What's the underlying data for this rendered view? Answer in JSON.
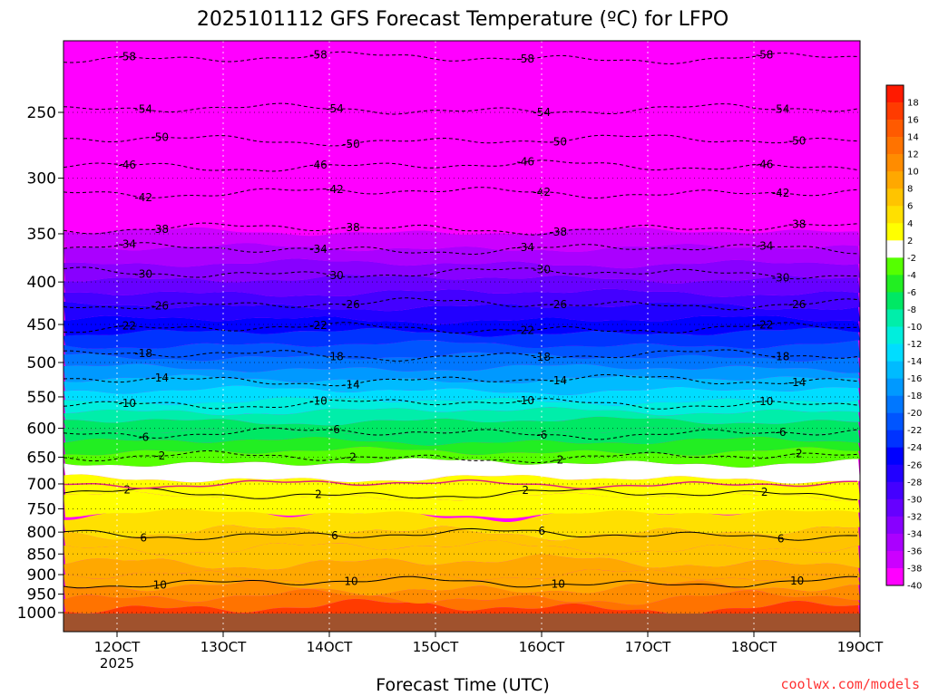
{
  "chart_data": {
    "type": "heatmap",
    "title": "2025101112 GFS Forecast Temperature (ºC) for LFPO",
    "xlabel": "Forecast Time (UTC)",
    "ylabel": "",
    "credit": "coolwx.com/models",
    "x_ticks": [
      {
        "label": "12OCT",
        "sub": "2025"
      },
      {
        "label": "13OCT",
        "sub": ""
      },
      {
        "label": "14OCT",
        "sub": ""
      },
      {
        "label": "15OCT",
        "sub": ""
      },
      {
        "label": "16OCT",
        "sub": ""
      },
      {
        "label": "17OCT",
        "sub": ""
      },
      {
        "label": "18OCT",
        "sub": ""
      },
      {
        "label": "19OCT",
        "sub": ""
      }
    ],
    "y_ticks": [
      250,
      300,
      350,
      400,
      450,
      500,
      550,
      600,
      650,
      700,
      750,
      800,
      850,
      900,
      950,
      1000
    ],
    "y_scale": "log-pressure",
    "ylim_hPa": [
      1030,
      200
    ],
    "grid": true,
    "colorbar": [
      {
        "label": "18",
        "color": "#ff1a00"
      },
      {
        "label": "16",
        "color": "#ff3b00"
      },
      {
        "label": "14",
        "color": "#ff5a00"
      },
      {
        "label": "12",
        "color": "#ff7300"
      },
      {
        "label": "10",
        "color": "#ff8c00"
      },
      {
        "label": "8",
        "color": "#ffa800"
      },
      {
        "label": "6",
        "color": "#ffc400"
      },
      {
        "label": "4",
        "color": "#ffe000"
      },
      {
        "label": "2",
        "color": "#ffff00"
      },
      {
        "label": "-2",
        "color": "#ffffff"
      },
      {
        "label": "-4",
        "color": "#55ff00"
      },
      {
        "label": "-6",
        "color": "#22ee22"
      },
      {
        "label": "-8",
        "color": "#00e864"
      },
      {
        "label": "-10",
        "color": "#00eeaa"
      },
      {
        "label": "-12",
        "color": "#00eedd"
      },
      {
        "label": "-14",
        "color": "#00ddff"
      },
      {
        "label": "-16",
        "color": "#00bbff"
      },
      {
        "label": "-18",
        "color": "#0099ff"
      },
      {
        "label": "-20",
        "color": "#0077ff"
      },
      {
        "label": "-22",
        "color": "#0055ff"
      },
      {
        "label": "-24",
        "color": "#0033ff"
      },
      {
        "label": "-26",
        "color": "#0000ff"
      },
      {
        "label": "-28",
        "color": "#2200ff"
      },
      {
        "label": "-30",
        "color": "#4400ff"
      },
      {
        "label": "-32",
        "color": "#6600ff"
      },
      {
        "label": "-34",
        "color": "#8800ff"
      },
      {
        "label": "-36",
        "color": "#aa00ff"
      },
      {
        "label": "-38",
        "color": "#cc00ff"
      },
      {
        "label": "-40",
        "color": "#ff00ff"
      }
    ],
    "isotherms": [
      {
        "label": "-58",
        "pressure": 215
      },
      {
        "label": "-54",
        "pressure": 248
      },
      {
        "label": "-50",
        "pressure": 270
      },
      {
        "label": "-46",
        "pressure": 290
      },
      {
        "label": "-42",
        "pressure": 312
      },
      {
        "label": "-38",
        "pressure": 345
      },
      {
        "label": "-34",
        "pressure": 365
      },
      {
        "label": "-30",
        "pressure": 390
      },
      {
        "label": "-26",
        "pressure": 425
      },
      {
        "label": "-22",
        "pressure": 455
      },
      {
        "label": "-18",
        "pressure": 490
      },
      {
        "label": "-14",
        "pressure": 525
      },
      {
        "label": "-10",
        "pressure": 560
      },
      {
        "label": "-6",
        "pressure": 608
      },
      {
        "label": "-2",
        "pressure": 650
      },
      {
        "label": "2",
        "pressure": 720
      },
      {
        "label": "6",
        "pressure": 805
      },
      {
        "label": "10",
        "pressure": 920
      }
    ]
  }
}
